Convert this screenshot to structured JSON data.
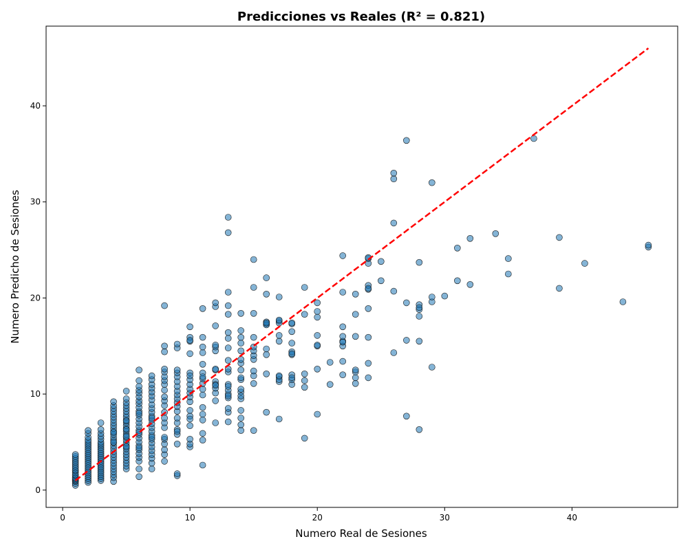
{
  "chart_data": {
    "type": "scatter",
    "title": "Predicciones vs Reales (R² = 0.821)",
    "xlabel": "Numero Real de Sesiones",
    "ylabel": "Numero Predicho de Sesiones",
    "xlim": [
      -1.3,
      48.3
    ],
    "ylim": [
      -1.8,
      48.3
    ],
    "xticks": [
      0,
      10,
      20,
      30,
      40
    ],
    "yticks": [
      0,
      10,
      20,
      30,
      40
    ],
    "grid": false,
    "legend": "none",
    "marker_color": "#1f77b4",
    "marker_edge_color": "#1a1a1a",
    "marker_opacity": 0.55,
    "reference_line": {
      "x": [
        1,
        46
      ],
      "y": [
        1,
        46
      ],
      "color": "#ff0000",
      "style": "dashed"
    },
    "series": [
      {
        "x": [
          1,
          1,
          1,
          1,
          1,
          1,
          1,
          1,
          1,
          1,
          1,
          1,
          1,
          1,
          1,
          1,
          1,
          1,
          1,
          1,
          2,
          2,
          2,
          2,
          2,
          2,
          2,
          2,
          2,
          2,
          2,
          2,
          2,
          2,
          2,
          2,
          2,
          2,
          2,
          2,
          2,
          2,
          2,
          2,
          2,
          2,
          3,
          3,
          3,
          3,
          3,
          3,
          3,
          3,
          3,
          3,
          3,
          3,
          3,
          3,
          3,
          3,
          3,
          3,
          3,
          3,
          3,
          3,
          3,
          3,
          3,
          3,
          4,
          4,
          4,
          4,
          4,
          4,
          4,
          4,
          4,
          4,
          4,
          4,
          4,
          4,
          4,
          4,
          4,
          4,
          4,
          4,
          4,
          4,
          4,
          4,
          4,
          4,
          4,
          4,
          4,
          4,
          5,
          5,
          5,
          5,
          5,
          5,
          5,
          5,
          5,
          5,
          5,
          5,
          5,
          5,
          5,
          5,
          5,
          5,
          5,
          5,
          5,
          5,
          5,
          5,
          5,
          5,
          5,
          5,
          5,
          5,
          6,
          6,
          6,
          6,
          6,
          6,
          6,
          6,
          6,
          6,
          6,
          6,
          6,
          6,
          6,
          6,
          6,
          6,
          6,
          6,
          6,
          6,
          6,
          6,
          6,
          6,
          6,
          6,
          7,
          7,
          7,
          7,
          7,
          7,
          7,
          7,
          7,
          7,
          7,
          7,
          7,
          7,
          7,
          7,
          7,
          7,
          7,
          7,
          7,
          7,
          7,
          7,
          7,
          7,
          8,
          8,
          8,
          8,
          8,
          8,
          8,
          8,
          8,
          8,
          8,
          8,
          8,
          8,
          8,
          8,
          8,
          8,
          8,
          8,
          8,
          8,
          9,
          9,
          9,
          9,
          9,
          9,
          9,
          9,
          9,
          9,
          9,
          9,
          9,
          9,
          9,
          9,
          9,
          9,
          9,
          9,
          9,
          10,
          10,
          10,
          10,
          10,
          10,
          10,
          10,
          10,
          10,
          10,
          10,
          10,
          10,
          10,
          10,
          10,
          10,
          10,
          10,
          11,
          11,
          11,
          11,
          11,
          11,
          11,
          11,
          11,
          11,
          11,
          11,
          11,
          11,
          11,
          11,
          11,
          12,
          12,
          12,
          12,
          12,
          12,
          12,
          12,
          12,
          12,
          12,
          12,
          12,
          12,
          12,
          13,
          13,
          13,
          13,
          13,
          13,
          13,
          13,
          13,
          13,
          13,
          13,
          13,
          13,
          13,
          13,
          13,
          13,
          13,
          13,
          14,
          14,
          14,
          14,
          14,
          14,
          14,
          14,
          14,
          14,
          14,
          14,
          14,
          14,
          14,
          14,
          14,
          14,
          15,
          15,
          15,
          15,
          15,
          15,
          15,
          15,
          15,
          15,
          15,
          15,
          16,
          16,
          16,
          16,
          16,
          16,
          16,
          16,
          16,
          16,
          17,
          17,
          17,
          17,
          17,
          17,
          17,
          17,
          17,
          17,
          17,
          18,
          18,
          18,
          18,
          18,
          18,
          18,
          18,
          18,
          18,
          18,
          19,
          19,
          19,
          19,
          19,
          19,
          20,
          20,
          20,
          20,
          20,
          20,
          20,
          20,
          21,
          21,
          22,
          22,
          22,
          22,
          22,
          22,
          22,
          22,
          22,
          23,
          23,
          23,
          23,
          23,
          23,
          23,
          24,
          24,
          24,
          24,
          24,
          24,
          24,
          24,
          24,
          24,
          25,
          25,
          26,
          26,
          26,
          26,
          26,
          27,
          27,
          27,
          27,
          28,
          28,
          28,
          28,
          28,
          28,
          28,
          29,
          29,
          29,
          29,
          30,
          31,
          31,
          32,
          32,
          34,
          35,
          35,
          37,
          39,
          39,
          41,
          44,
          46,
          46
        ],
        "y": [
          0.5,
          0.7,
          0.9,
          1.0,
          1.1,
          1.2,
          1.3,
          1.5,
          1.6,
          1.8,
          2.0,
          2.1,
          2.3,
          2.5,
          2.7,
          2.9,
          3.1,
          3.3,
          3.5,
          3.7,
          0.8,
          1.0,
          1.2,
          1.4,
          1.6,
          1.8,
          2.0,
          2.2,
          2.4,
          2.6,
          2.8,
          3.0,
          3.2,
          3.4,
          3.6,
          3.8,
          4.0,
          4.2,
          4.4,
          4.6,
          4.8,
          5.0,
          5.2,
          5.5,
          5.9,
          6.2,
          1.0,
          1.2,
          1.4,
          1.6,
          1.8,
          2.0,
          2.2,
          2.4,
          2.6,
          2.8,
          3.0,
          3.2,
          3.4,
          3.6,
          3.8,
          4.0,
          4.2,
          4.4,
          4.6,
          4.8,
          5.0,
          5.3,
          5.6,
          5.9,
          6.3,
          7.0,
          0.9,
          1.3,
          1.6,
          1.9,
          2.2,
          2.5,
          2.8,
          3.1,
          3.4,
          3.7,
          4.0,
          4.3,
          4.6,
          4.9,
          5.2,
          5.5,
          5.8,
          6.1,
          6.4,
          6.7,
          7.0,
          7.3,
          7.6,
          7.9,
          8.2,
          8.5,
          8.8,
          9.2,
          5.0,
          6.0,
          2.2,
          2.5,
          2.8,
          3.1,
          3.4,
          3.7,
          4.0,
          4.3,
          4.6,
          4.9,
          5.2,
          5.5,
          5.8,
          6.1,
          6.4,
          6.7,
          7.0,
          7.3,
          7.6,
          7.9,
          8.2,
          8.5,
          8.8,
          9.1,
          9.5,
          10.3,
          5.6,
          6.3,
          7.2,
          4.5,
          1.4,
          2.2,
          3.0,
          3.4,
          3.8,
          4.2,
          4.6,
          5.0,
          5.4,
          5.8,
          6.2,
          6.6,
          7.0,
          7.4,
          7.8,
          8.2,
          8.6,
          9.0,
          9.3,
          9.7,
          10.1,
          10.4,
          10.8,
          11.4,
          12.5,
          4.4,
          6.0,
          8.0,
          2.2,
          2.8,
          3.3,
          3.7,
          4.1,
          4.5,
          4.9,
          5.3,
          5.7,
          6.1,
          6.5,
          6.9,
          7.3,
          7.7,
          8.1,
          8.5,
          8.9,
          9.4,
          9.8,
          10.2,
          10.6,
          11.0,
          11.5,
          11.9,
          5.5,
          7.5,
          3.0,
          3.7,
          4.2,
          4.8,
          5.3,
          6.5,
          7.0,
          7.5,
          8.1,
          8.8,
          9.3,
          9.7,
          10.4,
          11.0,
          11.4,
          11.8,
          12.3,
          12.6,
          14.4,
          15.0,
          19.2,
          5.5,
          1.5,
          1.7,
          4.8,
          5.8,
          6.3,
          7.0,
          7.5,
          8.2,
          8.7,
          9.1,
          9.5,
          9.9,
          10.3,
          10.8,
          11.3,
          11.8,
          12.2,
          12.5,
          14.8,
          15.2,
          6.1,
          4.5,
          4.8,
          5.3,
          6.7,
          7.7,
          8.3,
          9.2,
          9.7,
          10.1,
          10.5,
          11.0,
          11.5,
          12.2,
          14.2,
          15.5,
          15.9,
          17.0,
          7.4,
          11.9,
          15.6,
          2.6,
          5.2,
          5.9,
          7.3,
          7.9,
          8.6,
          9.9,
          10.5,
          11.1,
          11.6,
          12.2,
          13.1,
          14.3,
          14.9,
          15.9,
          18.9,
          11.8,
          7.0,
          9.3,
          10.1,
          10.6,
          11.3,
          12.5,
          14.5,
          14.9,
          17.1,
          19.1,
          19.5,
          15.1,
          12.6,
          11.0,
          10.9,
          7.1,
          8.1,
          8.5,
          9.6,
          10.0,
          10.4,
          11.0,
          12.3,
          13.5,
          14.8,
          15.8,
          16.4,
          18.3,
          19.2,
          20.6,
          26.8,
          28.4,
          12.6,
          9.8,
          10.8,
          6.2,
          6.8,
          7.5,
          8.3,
          9.5,
          10.2,
          11.5,
          12.5,
          13.2,
          13.6,
          14.5,
          15.3,
          15.9,
          16.6,
          18.4,
          10.5,
          11.7,
          9.8,
          6.2,
          11.1,
          11.9,
          12.4,
          13.6,
          14.0,
          14.5,
          15.9,
          18.4,
          21.1,
          24.0,
          14.9,
          8.1,
          12.1,
          14.1,
          14.7,
          17.3,
          17.5,
          20.4,
          22.1,
          17.2,
          17.4,
          7.4,
          11.3,
          11.8,
          15.5,
          16.1,
          17.6,
          20.1,
          11.5,
          11.9,
          17.4,
          17.7,
          11.0,
          11.5,
          12.0,
          14.1,
          14.4,
          15.3,
          16.5,
          17.3,
          17.4,
          14.2,
          11.7,
          5.4,
          10.7,
          11.4,
          12.1,
          18.3,
          21.1,
          7.9,
          12.6,
          15.0,
          16.1,
          18.0,
          18.6,
          19.5,
          15.1,
          11.0,
          13.3,
          12.0,
          13.4,
          15.0,
          15.5,
          16.0,
          17.0,
          20.6,
          24.4,
          15.4,
          11.1,
          11.7,
          12.3,
          16.0,
          18.3,
          20.4,
          12.5,
          11.7,
          13.2,
          15.9,
          18.9,
          20.9,
          21.3,
          23.6,
          24.1,
          24.2,
          21.0,
          21.8,
          23.8,
          14.3,
          20.7,
          27.8,
          32.4,
          33.0,
          7.7,
          15.6,
          19.5,
          36.4,
          6.3,
          15.5,
          18.1,
          18.8,
          19.3,
          23.7,
          19.0,
          12.8,
          19.6,
          20.1,
          32.0,
          20.2,
          21.8,
          25.2,
          21.4,
          26.2,
          26.7,
          22.5,
          24.1,
          36.6,
          21.0,
          26.3,
          23.6,
          19.6,
          25.3,
          25.5
        ]
      }
    ]
  }
}
